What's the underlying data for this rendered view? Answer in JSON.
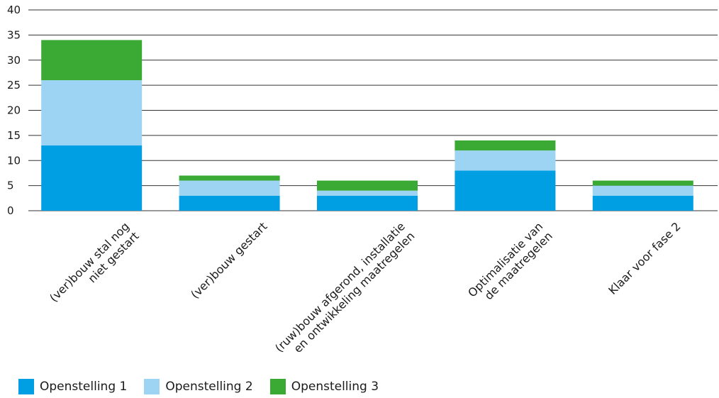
{
  "chart_data": {
    "type": "bar",
    "stacked": true,
    "categories": [
      [
        "(ver)bouw stal nog",
        "niet gestart"
      ],
      [
        "(ver)bouw gestart"
      ],
      [
        "(ruw)bouw afgerond, installatie",
        "en ontwikkeling maatregelen"
      ],
      [
        "Optimalisatie van",
        "de maatregelen"
      ],
      [
        "Klaar voor fase 2"
      ]
    ],
    "series": [
      {
        "name": "Openstelling 1",
        "color": "#009fe3",
        "values": [
          13,
          3,
          3,
          8,
          3
        ]
      },
      {
        "name": "Openstelling 2",
        "color": "#9dd4f3",
        "values": [
          13,
          3,
          1,
          4,
          2
        ]
      },
      {
        "name": "Openstelling 3",
        "color": "#3aaa35",
        "values": [
          8,
          1,
          2,
          2,
          1
        ]
      }
    ],
    "ylim": [
      0,
      40
    ],
    "yticks": [
      0,
      5,
      10,
      15,
      20,
      25,
      30,
      35,
      40
    ],
    "grid": true,
    "legend_position": "bottom-left"
  }
}
